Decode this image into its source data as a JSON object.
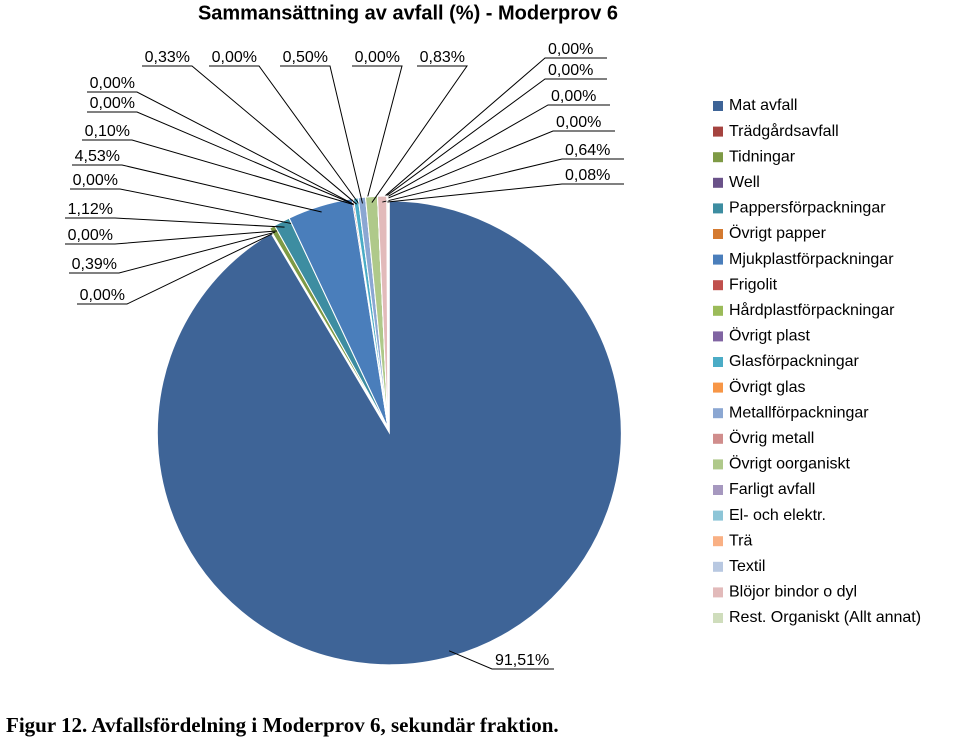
{
  "chart_data": {
    "type": "pie",
    "title": "Sammansättning av avfall (%) - Moderprov 6",
    "caption": "Figur 12. Avfallsfördelning i Moderprov 6, sekundär fraktion.",
    "categories": [
      "Mat avfall",
      "Trädgårdsavfall",
      "Tidningar",
      "Well",
      "Pappersförpackningar",
      "Övrigt papper",
      "Mjukplastförpackningar",
      "Frigolit",
      "Hårdplastförpackningar",
      "Övrigt plast",
      "Glasförpackningar",
      "Övrigt glas",
      "Metallförpackningar",
      "Övrig metall",
      "Övrigt oorganiskt",
      "Farligt avfall",
      "El- och elektr.",
      "Trä",
      "Textil",
      "Blöjor bindor o dyl",
      "Rest. Organiskt (Allt annat)"
    ],
    "values": [
      91.51,
      0,
      0.39,
      0,
      1.12,
      0,
      4.53,
      0.1,
      0,
      0,
      0.33,
      0,
      0.5,
      0,
      0.83,
      0,
      0,
      0,
      0,
      0.64,
      0.08
    ],
    "value_labels": [
      "91,51%",
      "0,00%",
      "0,39%",
      "0,00%",
      "1,12%",
      "0,00%",
      "4,53%",
      "0,10%",
      "0,00%",
      "0,00%",
      "0,33%",
      "0,00%",
      "0,50%",
      "0,00%",
      "0,83%",
      "0,00%",
      "0,00%",
      "0,00%",
      "0,00%",
      "0,64%",
      "0,08%"
    ],
    "colors": [
      "#3e6497",
      "#a5433f",
      "#7e9a45",
      "#6a5289",
      "#3d8da1",
      "#d47a30",
      "#4a7ebb",
      "#c0504d",
      "#9bbb59",
      "#8064a2",
      "#4bacc6",
      "#f79646",
      "#8ba7d2",
      "#d08d8c",
      "#afc98a",
      "#a698bf",
      "#8dc5d7",
      "#f9b084",
      "#b8c8e1",
      "#e2baba",
      "#cfddbc"
    ],
    "legend": "right"
  }
}
